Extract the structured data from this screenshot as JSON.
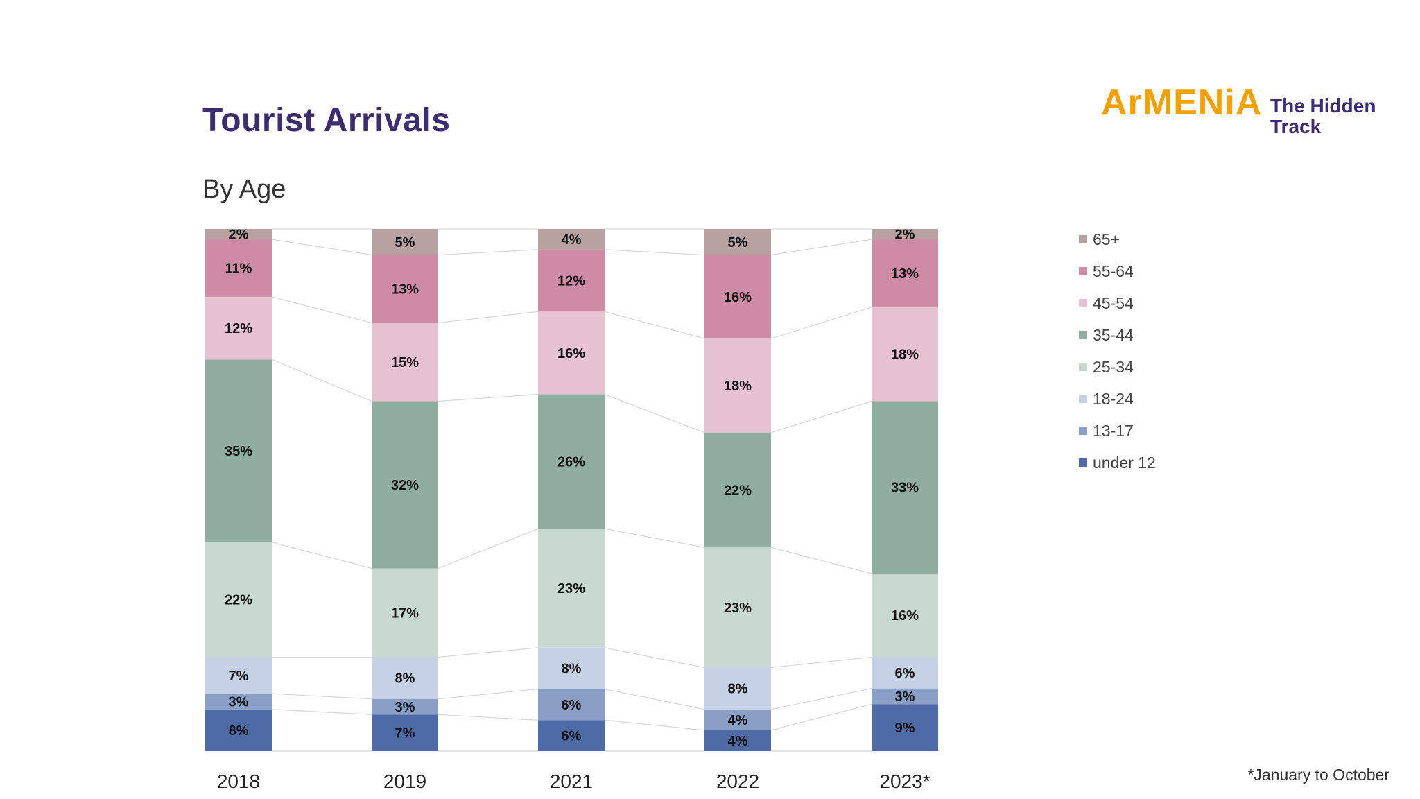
{
  "header": {
    "title": "Tourist Arrivals",
    "subtitle": "By Age"
  },
  "logo": {
    "brand": "ArMENiA",
    "tagline_line1": "The Hidden",
    "tagline_line2": "Track",
    "brand_color": "#f4a100",
    "tagline_color": "#3b2d6e"
  },
  "footnote": "*January to October",
  "colors": {
    "under 12": "#4e6ba6",
    "13-17": "#8a9fc6",
    "18-24": "#c5d1e5",
    "25-34": "#c8d9d2",
    "35-44": "#8fada1",
    "45-54": "#e7c3d1",
    "55-64": "#cd8ba6",
    "65+": "#b8a1a1"
  },
  "chart_data": {
    "type": "bar",
    "stacked": true,
    "normalized": true,
    "categories": [
      "2018",
      "2019",
      "2021",
      "2022",
      "2023*"
    ],
    "legend_position": "right",
    "grid": false,
    "series": [
      {
        "name": "under 12",
        "values": [
          8,
          7,
          6,
          4,
          9
        ]
      },
      {
        "name": "13-17",
        "values": [
          3,
          3,
          6,
          4,
          3
        ]
      },
      {
        "name": "18-24",
        "values": [
          7,
          8,
          8,
          8,
          6
        ]
      },
      {
        "name": "25-34",
        "values": [
          22,
          17,
          23,
          23,
          16
        ]
      },
      {
        "name": "35-44",
        "values": [
          35,
          32,
          26,
          22,
          33
        ]
      },
      {
        "name": "45-54",
        "values": [
          12,
          15,
          16,
          18,
          18
        ]
      },
      {
        "name": "55-64",
        "values": [
          11,
          13,
          12,
          16,
          13
        ]
      },
      {
        "name": "65+",
        "values": [
          2,
          5,
          4,
          5,
          2
        ]
      }
    ],
    "data_labels": [
      [
        "8%",
        "7%",
        "6%",
        "4%",
        "9%"
      ],
      [
        "3%",
        "3%",
        "6%",
        "4%",
        "3%"
      ],
      [
        "7%",
        "8%",
        "8%",
        "8%",
        "6%"
      ],
      [
        "22%",
        "17%",
        "23%",
        "23%",
        "16%"
      ],
      [
        "35%",
        "32%",
        "26%",
        "22%",
        "33%"
      ],
      [
        "12%",
        "15%",
        "16%",
        "18%",
        "18%"
      ],
      [
        "11%",
        "13%",
        "12%",
        "16%",
        "13%"
      ],
      [
        "2%",
        "5%",
        "4%",
        "5%",
        "2%"
      ]
    ]
  }
}
